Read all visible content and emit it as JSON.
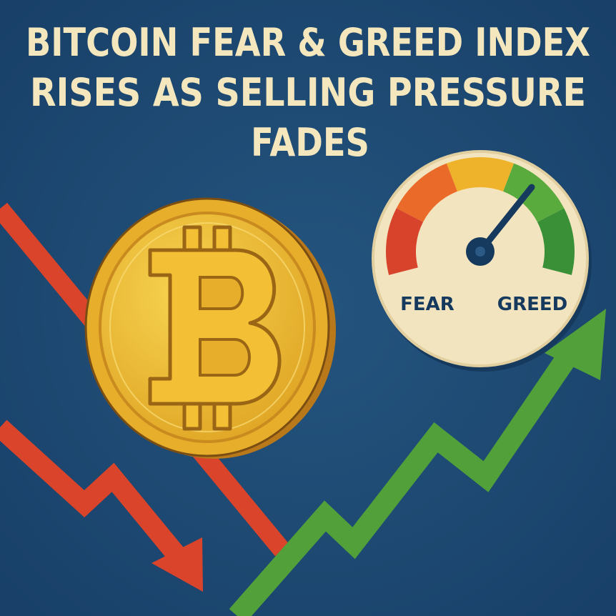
{
  "header": {
    "title_lines": [
      "BITCOIN FEAR & GREED INDEX",
      "RISES AS SELLING PRESSURE",
      "FADES"
    ]
  },
  "gauge": {
    "labels": [
      "FEAR",
      "GREED"
    ]
  }
}
